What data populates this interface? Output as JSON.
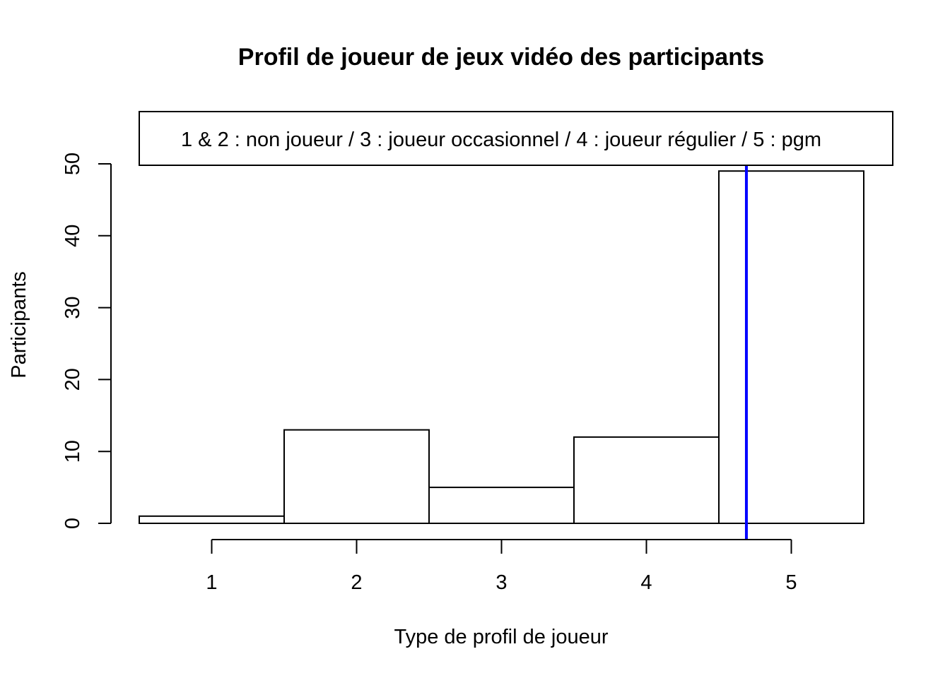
{
  "chart_data": {
    "type": "bar",
    "title": "Profil de joueur de jeux vidéo des participants",
    "xlabel": "Type de profil de joueur",
    "ylabel": "Participants",
    "x_ticks": [
      "1",
      "2",
      "3",
      "4",
      "5"
    ],
    "y_ticks": [
      "0",
      "10",
      "20",
      "30",
      "40",
      "50"
    ],
    "bins": [
      {
        "from": 0.5,
        "to": 1.5,
        "value": 1
      },
      {
        "from": 1.5,
        "to": 2.5,
        "value": 13
      },
      {
        "from": 2.5,
        "to": 3.5,
        "value": 5
      },
      {
        "from": 3.5,
        "to": 4.5,
        "value": 12
      },
      {
        "from": 4.5,
        "to": 5.5,
        "value": 49
      }
    ],
    "reference_line": {
      "x": 4.69,
      "color": "#0000ff"
    },
    "legend_text": "1 & 2 : non joueur / 3 : joueur occasionnel / 4 : joueur régulier / 5 : pgm",
    "legend_position": "top",
    "xlim": [
      0.5,
      5.5
    ],
    "ylim": [
      0,
      50
    ],
    "grid": false
  }
}
